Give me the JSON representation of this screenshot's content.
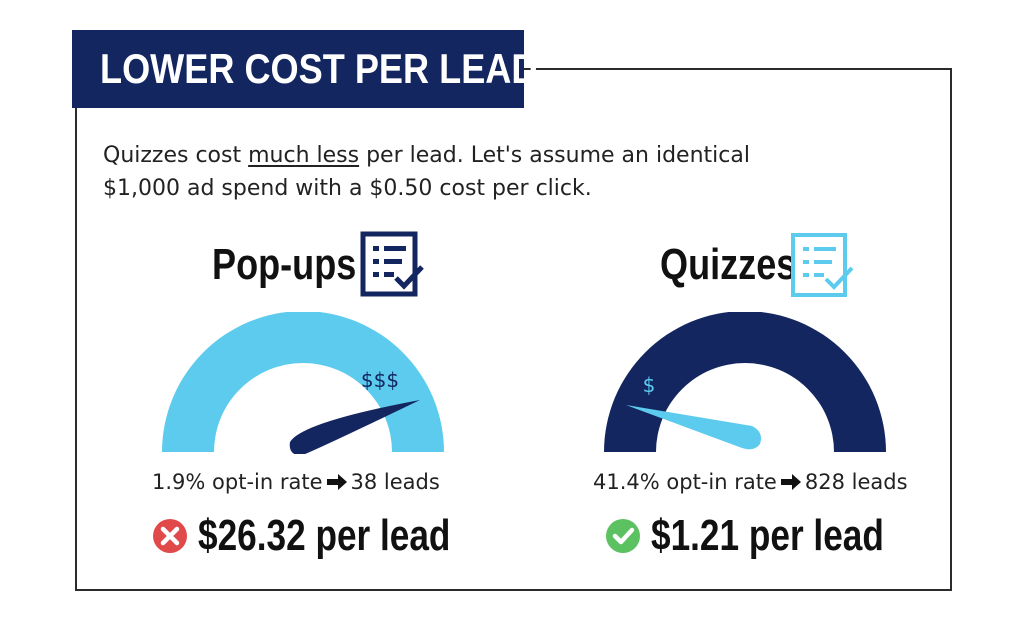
{
  "banner": {
    "title": "LOWER COST PER LEAD"
  },
  "intro": {
    "part1": "Quizzes cost ",
    "underlined": "much less",
    "part2": " per lead. Let's assume an identical $1,000 ad spend with a $0.50 cost per click."
  },
  "popups": {
    "heading": "Pop-ups",
    "gauge_label": "$$$",
    "rate": "1.9% opt-in rate",
    "leads": "38 leads",
    "price": "$26.32 per lead",
    "gauge_level": 0.88
  },
  "quizzes": {
    "heading": "Quizzes",
    "gauge_label": "$",
    "rate": "41.4% opt-in rate",
    "leads": "828 leads",
    "price": "$1.21 per lead",
    "gauge_level": 0.12
  },
  "colors": {
    "navy": "#142660",
    "light_blue": "#5ccbee",
    "red": "#e04a4a",
    "green": "#5cc160"
  },
  "icons": {
    "popups": "checklist-icon",
    "quizzes": "checklist-icon",
    "popups_status": "x-circle-icon",
    "quizzes_status": "check-circle-icon"
  }
}
